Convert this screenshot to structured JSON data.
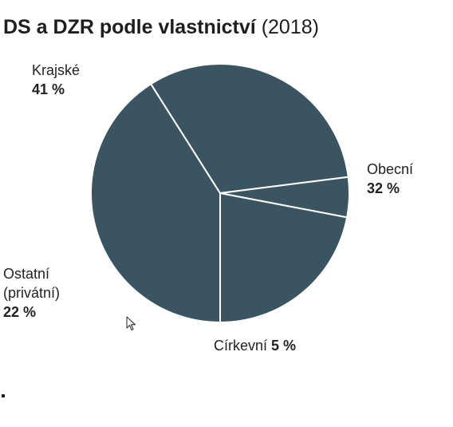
{
  "header": {
    "title": "DS a DZR podle vlastnictví",
    "year": "(2018)"
  },
  "colors": {
    "slice_fill": "#3a5462",
    "slice_stroke": "#ffffff",
    "text": "#222222"
  },
  "chart_data": {
    "type": "pie",
    "title": "DS a DZR podle vlastnictví (2018)",
    "slices": [
      {
        "name": "Krajské",
        "value": 41,
        "value_label": "41 %"
      },
      {
        "name": "Obecní",
        "value": 32,
        "value_label": "32 %"
      },
      {
        "name": "Církevní",
        "value": 5,
        "value_label": "5 %"
      },
      {
        "name": "Ostatní",
        "name_line2": "(privátní)",
        "value": 22,
        "value_label": "22 %"
      }
    ],
    "legend": "none",
    "labels": "outside"
  }
}
